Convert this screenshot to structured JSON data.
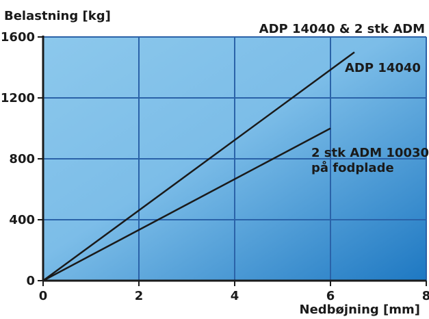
{
  "chart_data": {
    "type": "line",
    "title": "ADP 14040 & 2 stk ADM",
    "xlabel": "Nedbøjning [mm]",
    "ylabel": "Belastning [kg]",
    "xlim": [
      0,
      8
    ],
    "ylim": [
      0,
      1600
    ],
    "xticks": [
      "0",
      "2",
      "4",
      "6",
      "8"
    ],
    "yticks": [
      "0",
      "400",
      "800",
      "1200",
      "1600"
    ],
    "grid": true,
    "series": [
      {
        "name": "ADP 14040",
        "x": [
          0,
          6.5
        ],
        "y": [
          0,
          1500
        ]
      },
      {
        "name": "2 stk ADM 10030 på fodplade",
        "x": [
          0,
          6
        ],
        "y": [
          0,
          1000
        ]
      }
    ],
    "series_labels": [
      {
        "lines": [
          "ADP 14040"
        ]
      },
      {
        "lines": [
          "2 stk ADM 10030",
          "på fodplade"
        ]
      }
    ],
    "colors": {
      "background_light": "#8cc8ec",
      "background_dark": "#1e78c2",
      "grid": "#2a62a8",
      "line": "#1a1a1a"
    }
  }
}
